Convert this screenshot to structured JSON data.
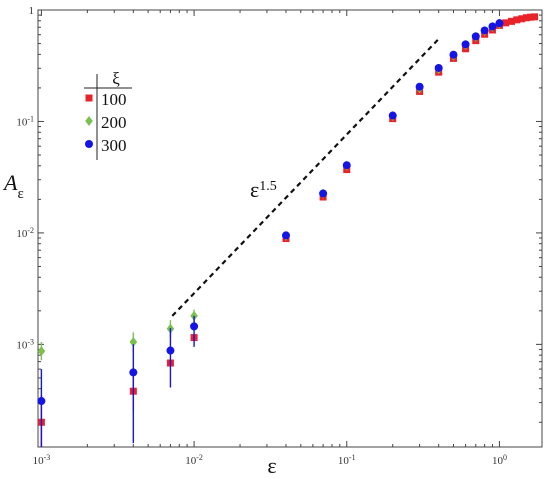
{
  "chart_data": {
    "type": "scatter",
    "title": "",
    "xlabel": "ε",
    "ylabel": "Aε",
    "xscale": "log",
    "yscale": "log",
    "xlim": [
      0.00095,
      1.9
    ],
    "ylim": [
      0.00012,
      1.0
    ],
    "grid": false,
    "legend_placement": "upper-left",
    "legend_title": "ξ",
    "x_tick_labels": [
      {
        "value": 0.001,
        "base": "10",
        "exp": "-3"
      },
      {
        "value": 0.01,
        "base": "10",
        "exp": "-2"
      },
      {
        "value": 0.1,
        "base": "10",
        "exp": "-1"
      },
      {
        "value": 1,
        "base": "10",
        "exp": "0"
      }
    ],
    "y_tick_labels": [
      {
        "value": 0.001,
        "base": "10",
        "exp": "-3"
      },
      {
        "value": 0.01,
        "base": "10",
        "exp": "-2"
      },
      {
        "value": 0.1,
        "base": "10",
        "exp": "-1"
      },
      {
        "value": 1,
        "label": "1"
      }
    ],
    "series": [
      {
        "name": "100",
        "color": "#e8232a",
        "marker": "square",
        "points": [
          {
            "x": 0.001,
            "y": 0.0002,
            "ylow": 0.00012,
            "yhigh": 0.00035
          },
          {
            "x": 0.004,
            "y": 0.00038,
            "ylow": 0.00025,
            "yhigh": 0.00055
          },
          {
            "x": 0.007,
            "y": 0.00068
          },
          {
            "x": 0.01,
            "y": 0.00115
          },
          {
            "x": 0.04,
            "y": 0.0089
          },
          {
            "x": 0.07,
            "y": 0.021
          },
          {
            "x": 0.1,
            "y": 0.037
          },
          {
            "x": 0.2,
            "y": 0.106
          },
          {
            "x": 0.3,
            "y": 0.186
          },
          {
            "x": 0.4,
            "y": 0.277
          },
          {
            "x": 0.5,
            "y": 0.368
          },
          {
            "x": 0.6,
            "y": 0.449
          },
          {
            "x": 0.7,
            "y": 0.531
          },
          {
            "x": 0.8,
            "y": 0.606
          },
          {
            "x": 0.9,
            "y": 0.662
          },
          {
            "x": 1.0,
            "y": 0.728
          },
          {
            "x": 1.1,
            "y": 0.767
          },
          {
            "x": 1.2,
            "y": 0.791
          },
          {
            "x": 1.3,
            "y": 0.816
          },
          {
            "x": 1.4,
            "y": 0.834
          },
          {
            "x": 1.5,
            "y": 0.852
          },
          {
            "x": 1.6,
            "y": 0.862
          },
          {
            "x": 1.7,
            "y": 0.868
          }
        ]
      },
      {
        "name": "200",
        "color": "#7cc04e",
        "marker": "diamond",
        "points": [
          {
            "x": 0.001,
            "y": 0.00087,
            "ylow": 0.00072,
            "yhigh": 0.00105
          },
          {
            "x": 0.004,
            "y": 0.00105,
            "ylow": 0.00085,
            "yhigh": 0.00128
          },
          {
            "x": 0.007,
            "y": 0.00138,
            "ylow": 0.00115,
            "yhigh": 0.00165
          },
          {
            "x": 0.01,
            "y": 0.0018,
            "ylow": 0.00155,
            "yhigh": 0.00205
          },
          {
            "x": 0.04,
            "y": 0.0094
          },
          {
            "x": 0.07,
            "y": 0.0225
          },
          {
            "x": 0.1,
            "y": 0.04
          },
          {
            "x": 0.2,
            "y": 0.112
          },
          {
            "x": 0.3,
            "y": 0.198
          },
          {
            "x": 0.4,
            "y": 0.295
          },
          {
            "x": 0.5,
            "y": 0.39
          },
          {
            "x": 0.6,
            "y": 0.485
          },
          {
            "x": 0.7,
            "y": 0.572
          },
          {
            "x": 0.8,
            "y": 0.646
          },
          {
            "x": 0.9,
            "y": 0.705
          },
          {
            "x": 1.0,
            "y": 0.755
          }
        ]
      },
      {
        "name": "300",
        "color": "#1414e6",
        "marker": "circle",
        "points": [
          {
            "x": 0.001,
            "y": 0.00031,
            "ylow": 0.00012,
            "yhigh": 0.0006
          },
          {
            "x": 0.004,
            "y": 0.00056,
            "ylow": 0.00013,
            "yhigh": 0.001
          },
          {
            "x": 0.007,
            "y": 0.00088,
            "ylow": 0.00041,
            "yhigh": 0.0014
          },
          {
            "x": 0.01,
            "y": 0.00145,
            "ylow": 0.00095,
            "yhigh": 0.0018
          },
          {
            "x": 0.04,
            "y": 0.0095
          },
          {
            "x": 0.07,
            "y": 0.0226
          },
          {
            "x": 0.1,
            "y": 0.0405
          },
          {
            "x": 0.2,
            "y": 0.113
          },
          {
            "x": 0.3,
            "y": 0.205
          },
          {
            "x": 0.4,
            "y": 0.302
          },
          {
            "x": 0.5,
            "y": 0.397
          },
          {
            "x": 0.6,
            "y": 0.492
          },
          {
            "x": 0.7,
            "y": 0.58
          },
          {
            "x": 0.8,
            "y": 0.655
          },
          {
            "x": 0.9,
            "y": 0.712
          },
          {
            "x": 1.0,
            "y": 0.762
          }
        ]
      }
    ],
    "reference_line": {
      "label_base": "ε",
      "label_exp": "1.5",
      "style": "dashed",
      "color": "#111111",
      "points": [
        {
          "x": 0.0072,
          "y": 0.0018
        },
        {
          "x": 0.4,
          "y": 0.55
        }
      ]
    }
  }
}
